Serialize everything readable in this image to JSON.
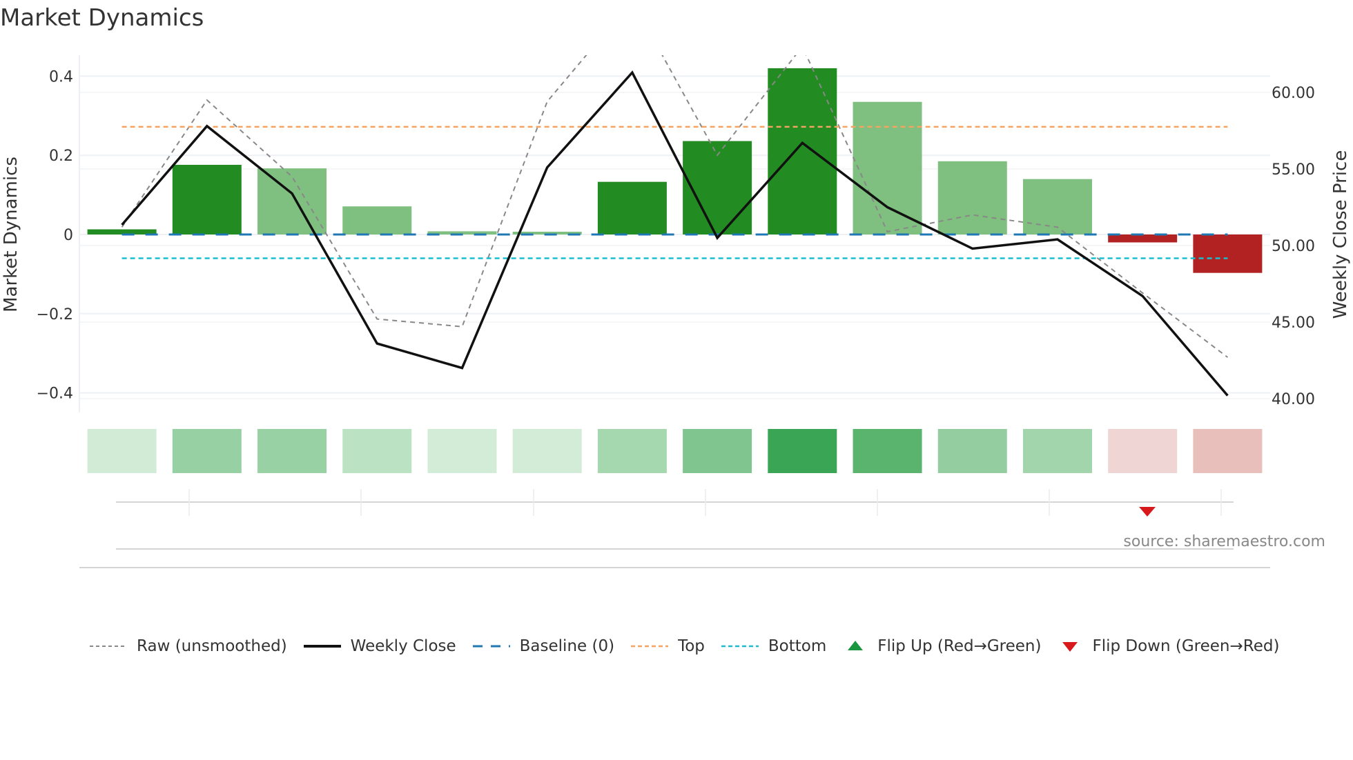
{
  "title": "Market Dynamics",
  "source": "source: sharemaestro.com",
  "left_axis": {
    "label": "Market Dynamics",
    "ticks": [
      "0.4",
      "0.2",
      "0",
      "−0.2",
      "−0.4"
    ]
  },
  "right_axis": {
    "label": "Weekly Close Price",
    "ticks": [
      "60.00",
      "55.00",
      "50.00",
      "45.00",
      "40.00"
    ]
  },
  "legend": {
    "raw": "Raw (unsmoothed)",
    "close": "Weekly Close",
    "baseline": "Baseline (0)",
    "top": "Top",
    "bottom": "Bottom",
    "flip_up": "Flip Up (Red→Green)",
    "flip_down": "Flip Down (Green→Red)"
  },
  "colors": {
    "strong_green": "#228b22",
    "light_green": "#7fbf7f",
    "red": "#b22222",
    "baseline": "#1f77b4",
    "top": "#f4a460",
    "bottom": "#17becf",
    "close": "#111111",
    "raw": "#888888",
    "flip_up": "#1a9641",
    "flip_down": "#d7191c"
  },
  "chart_data": {
    "type": "bar",
    "title": "Market Dynamics",
    "xlabel": "",
    "ylabel": "Market Dynamics",
    "ylabel_right": "Weekly Close Price",
    "ylim": [
      -0.45,
      0.45
    ],
    "ylim_right": [
      39.5,
      62.5
    ],
    "categories": [
      1,
      2,
      3,
      4,
      5,
      6,
      7,
      8,
      9,
      10,
      11,
      12,
      13,
      14
    ],
    "series": [
      {
        "name": "Market Dynamics",
        "type": "bar",
        "axis": "left",
        "values": [
          0.013,
          0.176,
          0.167,
          0.071,
          0.008,
          0.007,
          0.133,
          0.236,
          0.42,
          0.335,
          0.185,
          0.14,
          -0.02,
          -0.097
        ],
        "strength": [
          "strong",
          "strong",
          "weak",
          "weak",
          "weak",
          "weak",
          "strong",
          "strong",
          "strong",
          "weak",
          "weak",
          "weak",
          "strong",
          "strong"
        ]
      },
      {
        "name": "Weekly Close",
        "type": "line",
        "axis": "right",
        "values": [
          51.35,
          57.8,
          53.4,
          43.6,
          42.0,
          55.1,
          61.3,
          50.5,
          56.7,
          52.5,
          49.8,
          50.4,
          46.7,
          40.2
        ]
      },
      {
        "name": "Raw (unsmoothed)",
        "type": "line",
        "axis": "right",
        "values": [
          51.2,
          59.5,
          54.5,
          45.2,
          44.7,
          59.4,
          66.0,
          55.9,
          63.0,
          50.9,
          52.0,
          51.2,
          46.9,
          42.7
        ]
      },
      {
        "name": "Baseline (0)",
        "type": "hline",
        "axis": "left",
        "value": 0
      },
      {
        "name": "Top",
        "type": "hline",
        "axis": "left",
        "value": 0.272
      },
      {
        "name": "Bottom",
        "type": "hline",
        "axis": "left",
        "value": -0.06
      }
    ],
    "heat_strip": {
      "colors": [
        "#d2ebd6",
        "#97d0a3",
        "#98d1a4",
        "#bbe2c3",
        "#d3ecd8",
        "#d3ecd7",
        "#a5d8ae",
        "#80c58f",
        "#3aa655",
        "#5ab46d",
        "#94cea0",
        "#a2d5ac",
        "#f0d5d5",
        "#e8bfbb"
      ]
    },
    "markers": [
      {
        "name": "Flip Down (Green→Red)",
        "index": 13
      }
    ],
    "legend_position": "bottom",
    "grid": true
  }
}
